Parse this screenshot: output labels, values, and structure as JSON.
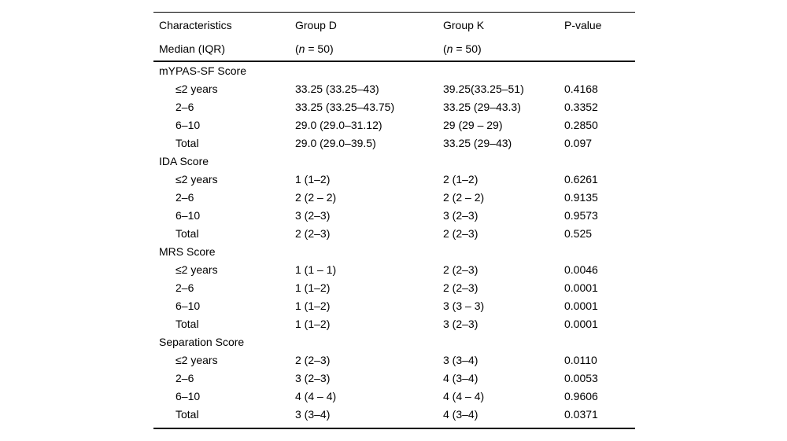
{
  "page": {
    "background": "#ffffff",
    "text_color": "#000000",
    "rule_color": "#000000"
  },
  "table": {
    "header": {
      "col1": {
        "line1": "Characteristics",
        "line2": "Median (IQR)"
      },
      "col2": {
        "line1": "Group D",
        "n_open": "(",
        "n_italic": "n",
        "n_rest": " = 50)"
      },
      "col3": {
        "line1": "Group K",
        "n_open": "(",
        "n_italic": "n",
        "n_rest": " = 50)"
      },
      "col4": {
        "line1": "P-value",
        "line2": ""
      }
    },
    "sections": [
      {
        "name": "mYPAS-SF Score",
        "rows": [
          {
            "label": "≤2 years",
            "group_d": "33.25 (33.25–43)",
            "group_k": "39.25(33.25–51)",
            "p_value": "0.4168"
          },
          {
            "label": "2–6",
            "group_d": "33.25 (33.25–43.75)",
            "group_k": "33.25 (29–43.3)",
            "p_value": "0.3352"
          },
          {
            "label": "6–10",
            "group_d": "29.0 (29.0–31.12)",
            "group_k": "29 (29 – 29)",
            "p_value": "0.2850"
          },
          {
            "label": "Total",
            "group_d": "29.0 (29.0–39.5)",
            "group_k": "33.25 (29–43)",
            "p_value": "0.097"
          }
        ]
      },
      {
        "name": "IDA Score",
        "rows": [
          {
            "label": "≤2 years",
            "group_d": "1 (1–2)",
            "group_k": "2 (1–2)",
            "p_value": "0.6261"
          },
          {
            "label": "2–6",
            "group_d": "2 (2 – 2)",
            "group_k": "2 (2 – 2)",
            "p_value": "0.9135"
          },
          {
            "label": "6–10",
            "group_d": "3 (2–3)",
            "group_k": "3 (2–3)",
            "p_value": "0.9573"
          },
          {
            "label": "Total",
            "group_d": "2 (2–3)",
            "group_k": "2 (2–3)",
            "p_value": "0.525"
          }
        ]
      },
      {
        "name": "MRS Score",
        "rows": [
          {
            "label": "≤2 years",
            "group_d": "1 (1 – 1)",
            "group_k": "2 (2–3)",
            "p_value": "0.0046"
          },
          {
            "label": "2–6",
            "group_d": "1 (1–2)",
            "group_k": "2 (2–3)",
            "p_value": "0.0001"
          },
          {
            "label": "6–10",
            "group_d": "1 (1–2)",
            "group_k": "3 (3 – 3)",
            "p_value": "0.0001"
          },
          {
            "label": "Total",
            "group_d": "1 (1–2)",
            "group_k": "3 (2–3)",
            "p_value": "0.0001"
          }
        ]
      },
      {
        "name": "Separation Score",
        "rows": [
          {
            "label": "≤2 years",
            "group_d": "2 (2–3)",
            "group_k": "3 (3–4)",
            "p_value": "0.0110"
          },
          {
            "label": "2–6",
            "group_d": "3 (2–3)",
            "group_k": "4 (3–4)",
            "p_value": "0.0053"
          },
          {
            "label": "6–10",
            "group_d": "4 (4 – 4)",
            "group_k": "4 (4 – 4)",
            "p_value": "0.9606"
          },
          {
            "label": "Total",
            "group_d": "3 (3–4)",
            "group_k": "4 (3–4)",
            "p_value": "0.0371"
          }
        ]
      }
    ]
  }
}
